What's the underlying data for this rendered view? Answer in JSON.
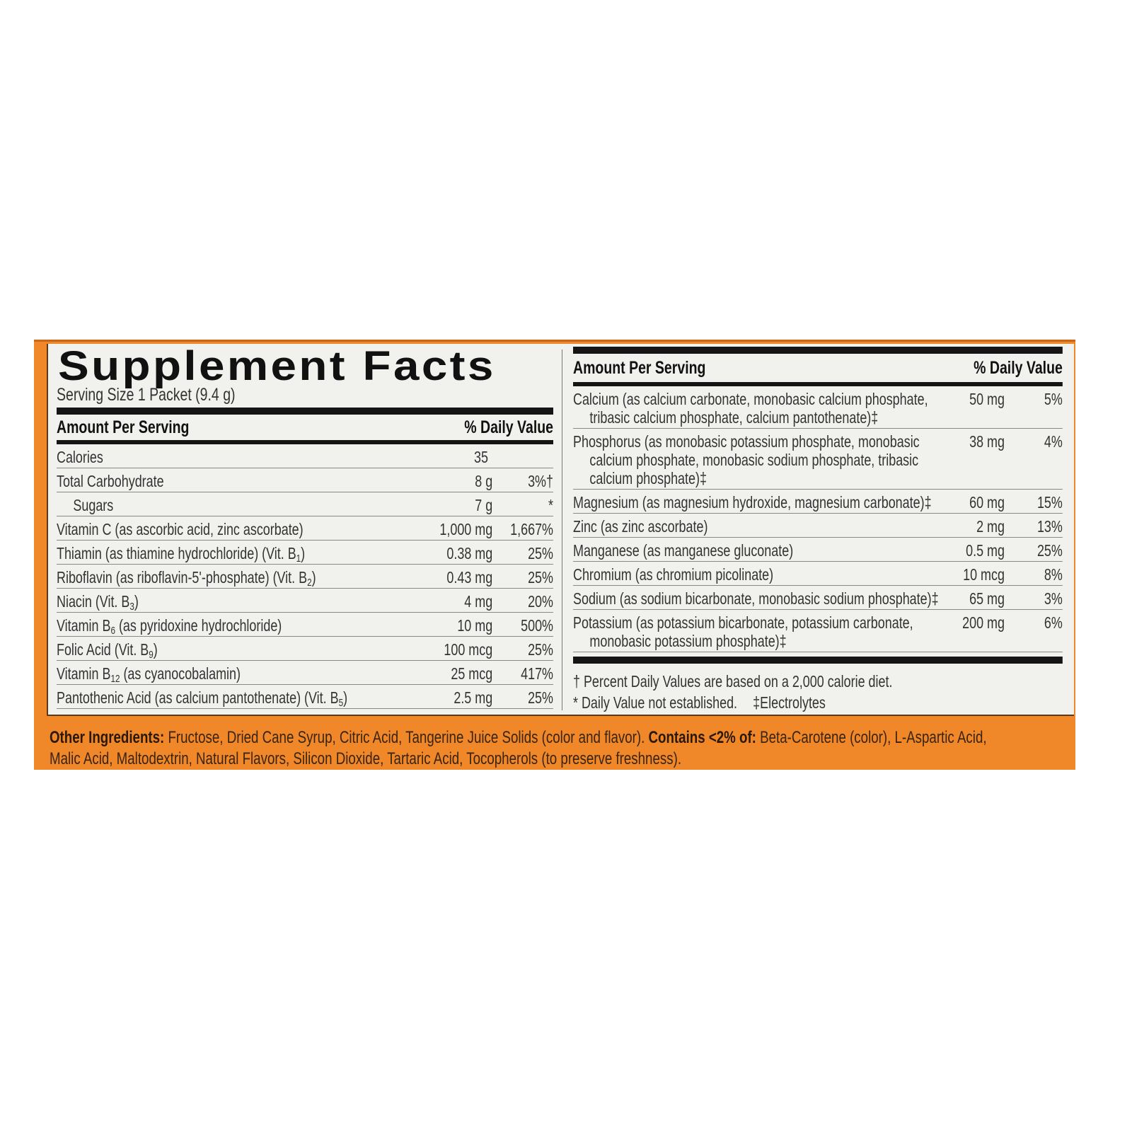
{
  "colors": {
    "band": "#f0882a",
    "panel": "#f1f1ed",
    "text": "#333333",
    "rules": "#151515"
  },
  "title": "Supplement Facts",
  "serving_size": "Serving Size 1 Packet (9.4 g)",
  "left": {
    "header_amount": "Amount Per Serving",
    "header_dv": "% Daily Value",
    "rows": [
      {
        "name": "Calories",
        "sub": "",
        "post": "",
        "amount": "35",
        "dv": ""
      },
      {
        "name": "Total Carbohydrate",
        "sub": "",
        "post": "",
        "amount": "8 g",
        "dv": "3%†"
      },
      {
        "name": "Sugars",
        "sub": "",
        "post": "",
        "amount": "7 g",
        "dv": "*",
        "indent": true
      },
      {
        "name": "Vitamin C (as ascorbic acid, zinc ascorbate)",
        "sub": "",
        "post": "",
        "amount": "1,000 mg",
        "dv": "1,667%"
      },
      {
        "name": "Thiamin (as thiamine hydrochloride) (Vit. B",
        "sub": "1",
        "post": ")",
        "amount": "0.38 mg",
        "dv": "25%"
      },
      {
        "name": "Riboflavin (as riboflavin-5'-phosphate) (Vit. B",
        "sub": "2",
        "post": ")",
        "amount": "0.43 mg",
        "dv": "25%"
      },
      {
        "name": "Niacin (Vit. B",
        "sub": "3",
        "post": ")",
        "amount": "4 mg",
        "dv": "20%"
      },
      {
        "name": "Vitamin B",
        "sub": "6",
        "post": " (as pyridoxine hydrochloride)",
        "amount": "10 mg",
        "dv": "500%"
      },
      {
        "name": "Folic Acid (Vit. B",
        "sub": "9",
        "post": ")",
        "amount": "100 mcg",
        "dv": "25%"
      },
      {
        "name": "Vitamin B",
        "sub": "12",
        "post": " (as cyanocobalamin)",
        "amount": "25 mcg",
        "dv": "417%"
      },
      {
        "name": "Pantothenic Acid (as calcium pantothenate) (Vit. B",
        "sub": "5",
        "post": ")",
        "amount": "2.5 mg",
        "dv": "25%"
      }
    ]
  },
  "right": {
    "header_amount": "Amount Per Serving",
    "header_dv": "% Daily Value",
    "rows": [
      {
        "lines": [
          "Calcium (as calcium carbonate, monobasic calcium phosphate,",
          "tribasic calcium phosphate, calcium pantothenate)‡"
        ],
        "amount": "50 mg",
        "dv": "5%"
      },
      {
        "lines": [
          "Phosphorus (as monobasic potassium phosphate, monobasic",
          "calcium phosphate, monobasic sodium phosphate, tribasic",
          "calcium phosphate)‡"
        ],
        "amount": "38 mg",
        "dv": "4%"
      },
      {
        "lines": [
          "Magnesium (as magnesium hydroxide, magnesium carbonate)‡"
        ],
        "amount": "60 mg",
        "dv": "15%"
      },
      {
        "lines": [
          "Zinc (as zinc ascorbate)"
        ],
        "amount": "2 mg",
        "dv": "13%"
      },
      {
        "lines": [
          "Manganese (as manganese gluconate)"
        ],
        "amount": "0.5 mg",
        "dv": "25%"
      },
      {
        "lines": [
          "Chromium (as chromium picolinate)"
        ],
        "amount": "10 mcg",
        "dv": "8%"
      },
      {
        "lines": [
          "Sodium (as sodium bicarbonate, monobasic sodium phosphate)‡"
        ],
        "amount": "65 mg",
        "dv": "3%"
      },
      {
        "lines": [
          "Potassium (as potassium bicarbonate, potassium carbonate,",
          "monobasic potassium phosphate)‡"
        ],
        "amount": "200 mg",
        "dv": "6%"
      }
    ],
    "footnote_1": "† Percent Daily Values are based on a 2,000 calorie diet.",
    "footnote_2": "* Daily Value not established.",
    "footnote_3": "‡Electrolytes"
  },
  "ingredients": {
    "label": "Other Ingredients:",
    "text_1": " Fructose, Dried Cane Syrup, Citric Acid, Tangerine Juice Solids (color and flavor). ",
    "contains_label": "Contains <2% of:",
    "text_2": " Beta-Carotene (color), L-Aspartic Acid, Malic Acid, Maltodextrin, Natural Flavors, Silicon Dioxide, Tartaric Acid, Tocopherols (to preserve freshness)."
  }
}
